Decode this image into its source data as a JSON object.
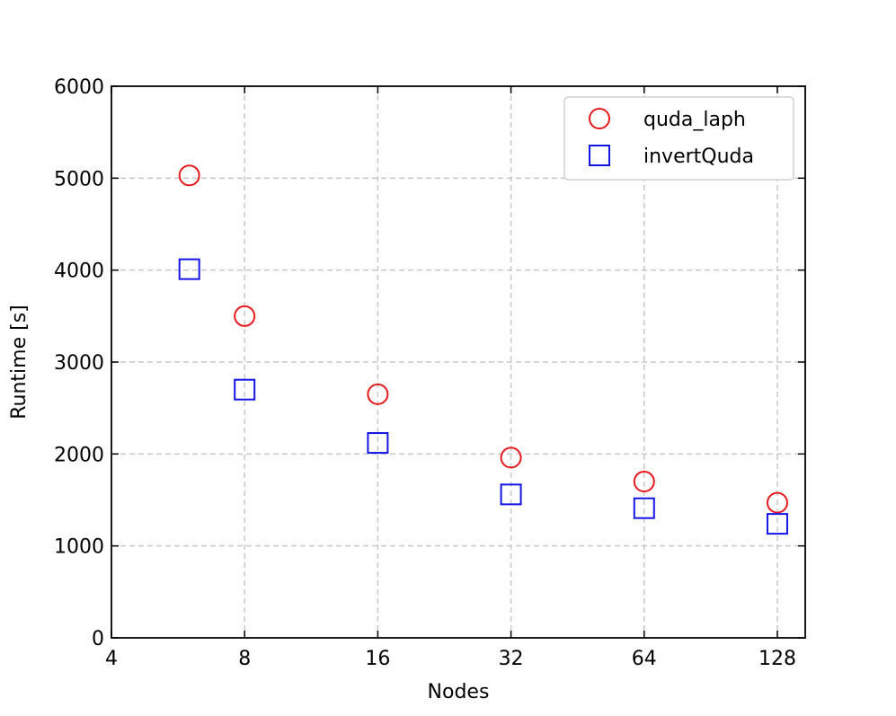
{
  "chart_data": {
    "type": "scatter",
    "title": "",
    "xlabel": "Nodes",
    "ylabel": "Runtime [s]",
    "xscale": "log2",
    "xlim": [
      4,
      148
    ],
    "ylim": [
      0,
      6000
    ],
    "xticks": [
      4,
      8,
      16,
      32,
      64,
      128
    ],
    "xtick_labels": [
      "4",
      "8",
      "16",
      "32",
      "64",
      "128"
    ],
    "yticks": [
      0,
      1000,
      2000,
      3000,
      4000,
      5000,
      6000
    ],
    "ytick_labels": [
      "0",
      "1000",
      "2000",
      "3000",
      "4000",
      "5000",
      "6000"
    ],
    "grid": true,
    "legend_position": "top-right",
    "series": [
      {
        "name": "quda_laph",
        "marker": "circle",
        "color": "#e41a1c",
        "x": [
          6,
          8,
          16,
          32,
          64,
          128
        ],
        "y": [
          5030,
          3500,
          2650,
          1960,
          1700,
          1470
        ]
      },
      {
        "name": "invertQuda",
        "marker": "square",
        "color": "#1414e6",
        "x": [
          6,
          8,
          16,
          32,
          64,
          128
        ],
        "y": [
          4010,
          2700,
          2120,
          1560,
          1410,
          1240
        ]
      }
    ]
  }
}
